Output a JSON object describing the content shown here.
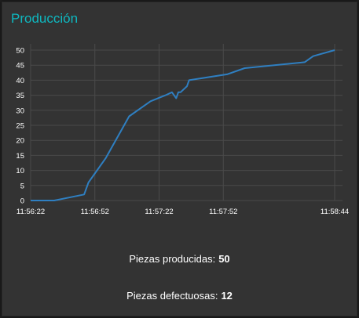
{
  "panel": {
    "title": "Producción"
  },
  "chart_data": {
    "type": "line",
    "title": "",
    "xlabel": "",
    "ylabel": "",
    "x_ticks": [
      "11:56:22",
      "11:56:52",
      "11:57:22",
      "11:57:52",
      "11:58:44"
    ],
    "x_tick_seconds": [
      0,
      30,
      60,
      90,
      142
    ],
    "x_range_seconds": [
      0,
      142
    ],
    "y_ticks": [
      0,
      5,
      10,
      15,
      20,
      25,
      30,
      35,
      40,
      45,
      50
    ],
    "ylim": [
      0,
      50
    ],
    "grid": true,
    "series": [
      {
        "color": "#2f7fc1",
        "x_seconds": [
          0,
          11,
          25,
          27,
          35,
          46,
          56,
          63,
          66,
          68,
          69,
          70,
          73,
          74,
          92,
          100,
          128,
          132,
          142
        ],
        "values": [
          0,
          0,
          2,
          6,
          14,
          28,
          33,
          35,
          36,
          34,
          36,
          36,
          38,
          40,
          42,
          44,
          46,
          48,
          50
        ]
      }
    ]
  },
  "stats": {
    "produced_label": "Piezas producidas:",
    "produced_value": "50",
    "defective_label": "Piezas defectuosas:",
    "defective_value": "12"
  }
}
